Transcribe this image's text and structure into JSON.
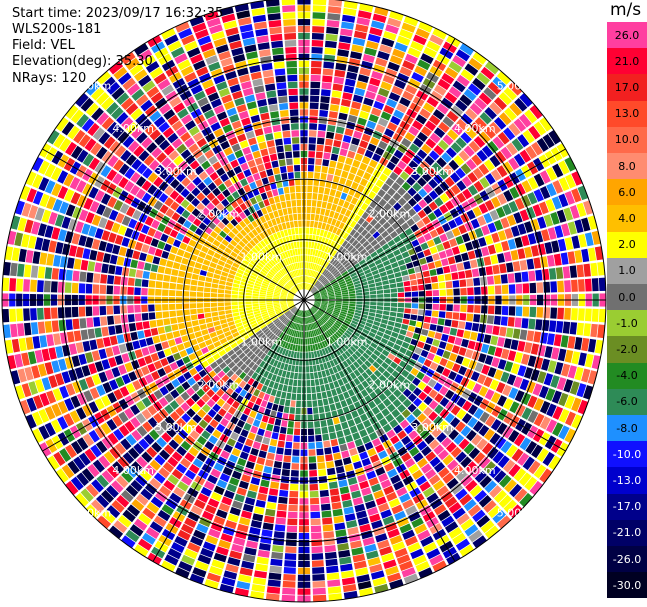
{
  "header": {
    "start_time": "Start time: 2023/09/17 16:32:35",
    "device": "WLS200s-181",
    "field": "Field: VEL",
    "elevation": "Elevation(deg): 35.30",
    "nrays": "NRays: 120"
  },
  "colorbar": {
    "unit": "m/s",
    "levels": [
      {
        "label": "26.0",
        "color": "#ff3fa0",
        "text": "#000000"
      },
      {
        "label": "21.0",
        "color": "#ff0033",
        "text": "#000000"
      },
      {
        "label": "17.0",
        "color": "#f22020",
        "text": "#000000"
      },
      {
        "label": "13.0",
        "color": "#ff4a2a",
        "text": "#000000"
      },
      {
        "label": "10.0",
        "color": "#ff6a4a",
        "text": "#000000"
      },
      {
        "label": "8.0",
        "color": "#ff8c70",
        "text": "#000000"
      },
      {
        "label": "6.0",
        "color": "#ffa500",
        "text": "#000000"
      },
      {
        "label": "4.0",
        "color": "#ffbf00",
        "text": "#000000"
      },
      {
        "label": "2.0",
        "color": "#ffff00",
        "text": "#000000"
      },
      {
        "label": "1.0",
        "color": "#a0a0a0",
        "text": "#000000"
      },
      {
        "label": "0.0",
        "color": "#707070",
        "text": "#000000"
      },
      {
        "label": "-1.0",
        "color": "#9acd32",
        "text": "#000000"
      },
      {
        "label": "-2.0",
        "color": "#6b8e23",
        "text": "#000000"
      },
      {
        "label": "-4.0",
        "color": "#228b22",
        "text": "#000000"
      },
      {
        "label": "-6.0",
        "color": "#2e8b57",
        "text": "#000000"
      },
      {
        "label": "-8.0",
        "color": "#1e90ff",
        "text": "#000000"
      },
      {
        "label": "-10.0",
        "color": "#1010ff",
        "text": "#ffffff"
      },
      {
        "label": "-13.0",
        "color": "#0000cd",
        "text": "#ffffff"
      },
      {
        "label": "-17.0",
        "color": "#00008b",
        "text": "#ffffff"
      },
      {
        "label": "-21.0",
        "color": "#000066",
        "text": "#ffffff"
      },
      {
        "label": "-26.0",
        "color": "#000044",
        "text": "#ffffff"
      },
      {
        "label": "-30.0",
        "color": "#000022",
        "text": "#ffffff"
      }
    ]
  },
  "chart_data": {
    "type": "heatmap",
    "projection": "polar PPI",
    "field": "VEL",
    "unit": "m/s",
    "nrays": 120,
    "vmin": -30.0,
    "vmax": 26.0,
    "range_ring_labels": [
      "1.00km",
      "2.00km",
      "3.00km",
      "4.00km",
      "5.00km"
    ],
    "range_rings_km": [
      1,
      2,
      3,
      4,
      5
    ],
    "max_range_km": 5.0,
    "pattern": "inner ~2 km coherent wind field: positive (yellow/orange) to north-west, negative (green) to south-east, near-zero grey band; beyond ~2.5 km mostly noisy random values"
  }
}
